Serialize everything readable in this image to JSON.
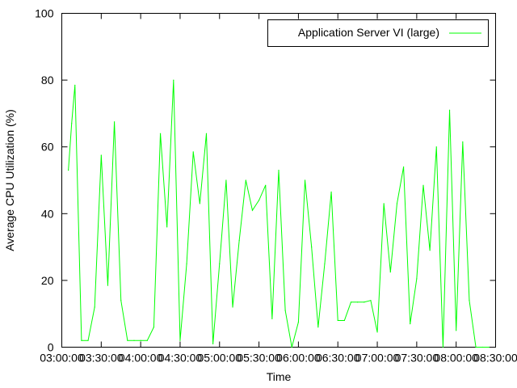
{
  "chart_data": {
    "type": "line",
    "xlabel": "Time",
    "ylabel": "Average CPU Utilization (%)",
    "ylim": [
      0,
      100
    ],
    "xlim": [
      "03:00:00",
      "08:30:00"
    ],
    "yticks": [
      "0",
      "20",
      "40",
      "60",
      "80",
      "100"
    ],
    "xticks": [
      "03:00:00",
      "03:30:00",
      "04:00:00",
      "04:30:00",
      "05:00:00",
      "05:30:00",
      "06:00:00",
      "06:30:00",
      "07:00:00",
      "07:30:00",
      "08:00:00",
      "08:30:00"
    ],
    "grid": false,
    "legend_position": "top-right",
    "series": [
      {
        "name": "Application Server VI (large)",
        "color": "#00ff00",
        "x": [
          "03:05:00",
          "03:07:30",
          "03:10:00",
          "03:15:00",
          "03:20:00",
          "03:25:00",
          "03:30:00",
          "03:35:00",
          "03:40:00",
          "03:45:00",
          "03:50:00",
          "03:55:00",
          "04:00:00",
          "04:05:00",
          "04:10:00",
          "04:15:00",
          "04:20:00",
          "04:25:00",
          "04:30:00",
          "04:35:00",
          "04:40:00",
          "04:45:00",
          "04:50:00",
          "04:55:00",
          "05:00:00",
          "05:05:00",
          "05:10:00",
          "05:15:00",
          "05:20:00",
          "05:25:00",
          "05:30:00",
          "05:35:00",
          "05:40:00",
          "05:45:00",
          "05:50:00",
          "05:55:00",
          "06:00:00",
          "06:05:00",
          "06:10:00",
          "06:15:00",
          "06:20:00",
          "06:25:00",
          "06:30:00",
          "06:35:00",
          "06:40:00",
          "06:45:00",
          "06:50:00",
          "06:55:00",
          "07:00:00",
          "07:05:00",
          "07:10:00",
          "07:15:00",
          "07:20:00",
          "07:25:00",
          "07:30:00",
          "07:35:00",
          "07:40:00",
          "07:45:00",
          "07:50:00",
          "07:55:00",
          "08:00:00",
          "08:05:00",
          "08:10:00",
          "08:15:00",
          "08:20:00",
          "08:25:00"
        ],
        "values": [
          53,
          67,
          78.5,
          2,
          2,
          12,
          57.5,
          18.5,
          67.5,
          14,
          2,
          2,
          2,
          2,
          6,
          64,
          36,
          80,
          2,
          25,
          58.5,
          43,
          64,
          1,
          25,
          50,
          12,
          32,
          50,
          41,
          44,
          48.5,
          8.5,
          53,
          11,
          0,
          7.5,
          50,
          30,
          6,
          25,
          46.5,
          8,
          8,
          13.5,
          13.5,
          13.5,
          14,
          4.5,
          43,
          22.5,
          43,
          54,
          7,
          20.5,
          48.5,
          29,
          60,
          0,
          71,
          5,
          61.5,
          14,
          0,
          0,
          0
        ]
      }
    ]
  }
}
